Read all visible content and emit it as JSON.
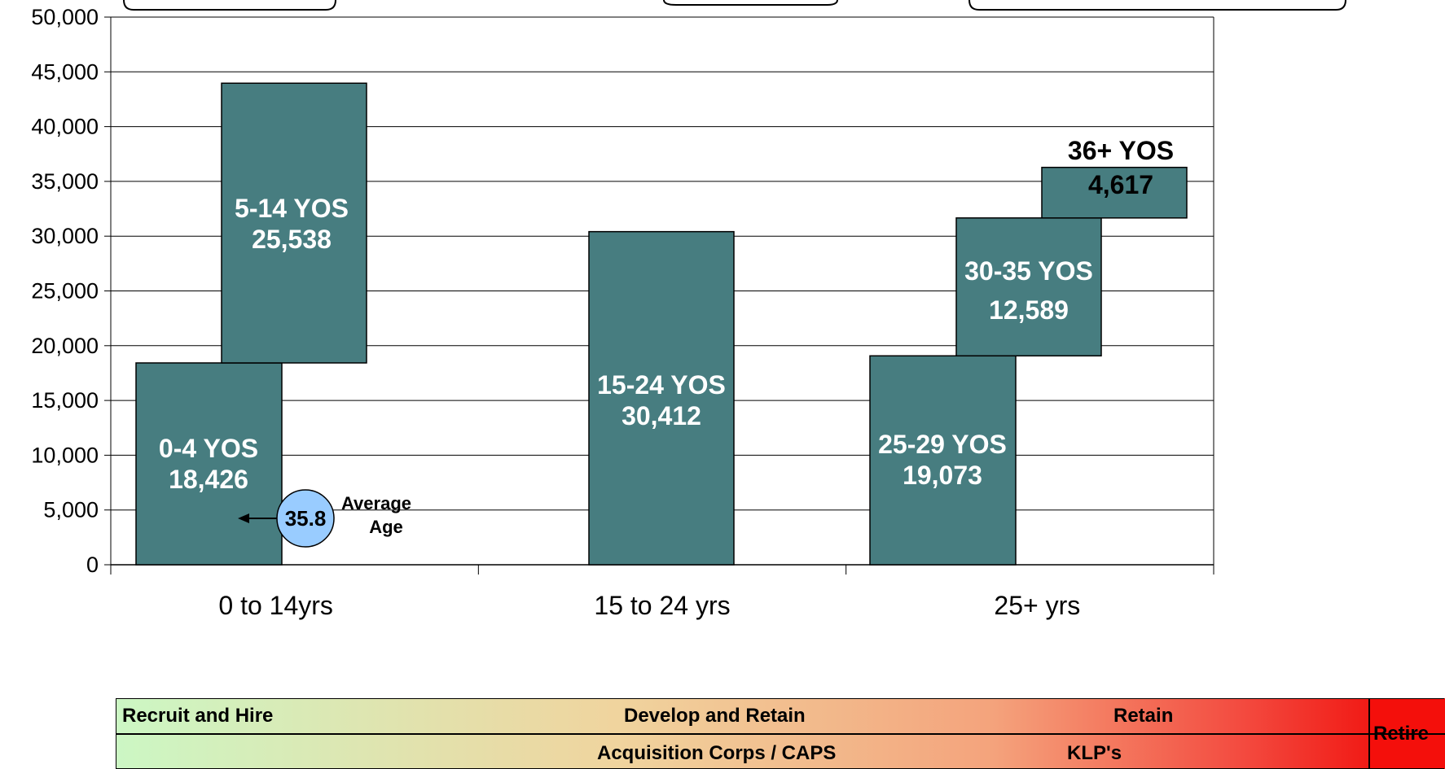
{
  "chart_data": {
    "type": "bar",
    "ylim": [
      0,
      50000
    ],
    "y_ticks": [
      "0",
      "5,000",
      "10,000",
      "15,000",
      "20,000",
      "25,000",
      "30,000",
      "35,000",
      "40,000",
      "45,000",
      "50,000"
    ],
    "y_tick_values": [
      0,
      5000,
      10000,
      15000,
      20000,
      25000,
      30000,
      35000,
      40000,
      45000,
      50000
    ],
    "grid": true,
    "categories": [
      "0 to 14yrs",
      "15 to 24 yrs",
      "25+ yrs"
    ],
    "bars": [
      {
        "label": "0-4 YOS",
        "value_label": "18,426",
        "base": 0,
        "value": 18426,
        "category": 0
      },
      {
        "label": "5-14 YOS",
        "value_label": "25,538",
        "base": 18426,
        "value": 25538,
        "category": 0
      },
      {
        "label": "15-24 YOS",
        "value_label": "30,412",
        "base": 0,
        "value": 30412,
        "category": 1
      },
      {
        "label": "25-29 YOS",
        "value_label": "19,073",
        "base": 0,
        "value": 19073,
        "category": 2
      },
      {
        "label": "30-35 YOS",
        "value_label": "12,589",
        "base": 19073,
        "value": 12589,
        "category": 2
      },
      {
        "label": "36+ YOS",
        "value_label": "4,617",
        "base": 31662,
        "value": 4617,
        "category": 2
      }
    ],
    "average_age": {
      "value": "35.8",
      "label_line1": "Average",
      "label_line2": "Age"
    },
    "colors": {
      "bar": "#477d80",
      "grid": "#000000",
      "circle": "#99ccff"
    }
  },
  "lifecycle": {
    "row1": {
      "recruit": "Recruit and Hire",
      "develop": "Develop and Retain",
      "retain": "Retain"
    },
    "row2": {
      "acquisition": "Acquisition Corps / CAPS",
      "klp": "KLP's"
    },
    "retire": "Retire"
  }
}
